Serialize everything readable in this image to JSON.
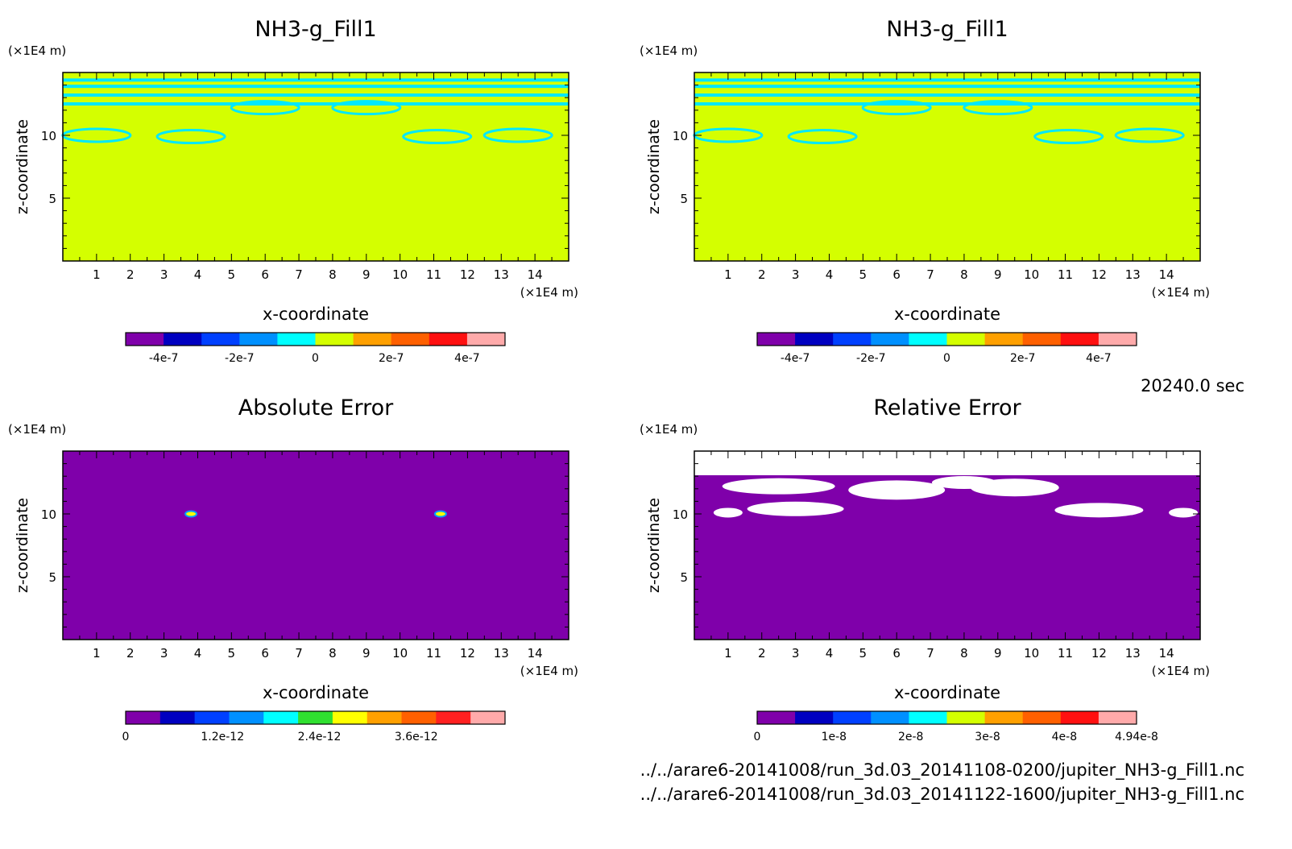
{
  "time_label": "20240.0 sec",
  "file_paths": [
    "../../arare6-20141008/run_3d.03_20141108-0200/jupiter_NH3-g_Fill1.nc",
    "../../arare6-20141008/run_3d.03_20141122-1600/jupiter_NH3-g_Fill1.nc"
  ],
  "chart_data": [
    {
      "type": "heatmap",
      "title": "NH3-g_Fill1",
      "xlabel": "x-coordinate",
      "ylabel": "z-coordinate",
      "x_unit": "(×1E4 m)",
      "y_unit": "(×1E4 m)",
      "xlim": [
        0,
        15
      ],
      "ylim": [
        0,
        15
      ],
      "x_ticks": [
        1,
        2,
        3,
        4,
        5,
        6,
        7,
        8,
        9,
        10,
        11,
        12,
        13,
        14
      ],
      "y_ticks": [
        5,
        10
      ],
      "dominant_value": 0,
      "colorbar": {
        "range": [
          -5e-07,
          5e-07
        ],
        "colors": [
          "#7f00aa",
          "#0000c0",
          "#0040ff",
          "#0090ff",
          "#00ffff",
          "#d4ff00",
          "#ffa000",
          "#ff6000",
          "#ff1010",
          "#ffaaaa"
        ],
        "tick_labels": [
          "-4e-7",
          "-2e-7",
          "0",
          "2e-7",
          "4e-7"
        ],
        "tick_values": [
          -4e-07,
          -2e-07,
          0,
          2e-07,
          4e-07
        ]
      }
    },
    {
      "type": "heatmap",
      "title": "NH3-g_Fill1",
      "xlabel": "x-coordinate",
      "ylabel": "z-coordinate",
      "x_unit": "(×1E4 m)",
      "y_unit": "(×1E4 m)",
      "xlim": [
        0,
        15
      ],
      "ylim": [
        0,
        15
      ],
      "x_ticks": [
        1,
        2,
        3,
        4,
        5,
        6,
        7,
        8,
        9,
        10,
        11,
        12,
        13,
        14
      ],
      "y_ticks": [
        5,
        10
      ],
      "dominant_value": 0,
      "colorbar": {
        "range": [
          -5e-07,
          5e-07
        ],
        "colors": [
          "#7f00aa",
          "#0000c0",
          "#0040ff",
          "#0090ff",
          "#00ffff",
          "#d4ff00",
          "#ffa000",
          "#ff6000",
          "#ff1010",
          "#ffaaaa"
        ],
        "tick_labels": [
          "-4e-7",
          "-2e-7",
          "0",
          "2e-7",
          "4e-7"
        ],
        "tick_values": [
          -4e-07,
          -2e-07,
          0,
          2e-07,
          4e-07
        ]
      }
    },
    {
      "type": "heatmap",
      "title": "Absolute Error",
      "xlabel": "x-coordinate",
      "ylabel": "z-coordinate",
      "x_unit": "(×1E4 m)",
      "y_unit": "(×1E4 m)",
      "xlim": [
        0,
        15
      ],
      "ylim": [
        0,
        15
      ],
      "x_ticks": [
        1,
        2,
        3,
        4,
        5,
        6,
        7,
        8,
        9,
        10,
        11,
        12,
        13,
        14
      ],
      "y_ticks": [
        5,
        10
      ],
      "dominant_value": 0,
      "colorbar": {
        "range": [
          0,
          4.7e-12
        ],
        "colors": [
          "#7f00aa",
          "#0000c0",
          "#0040ff",
          "#0090ff",
          "#00ffff",
          "#30e030",
          "#ffff00",
          "#ffa000",
          "#ff6000",
          "#ff2020",
          "#ffaaaa"
        ],
        "tick_labels": [
          "0",
          "1.2e-12",
          "2.4e-12",
          "3.6e-12"
        ],
        "tick_values": [
          0,
          1.2e-12,
          2.4e-12,
          3.6e-12
        ]
      }
    },
    {
      "type": "heatmap",
      "title": "Relative Error",
      "xlabel": "x-coordinate",
      "ylabel": "z-coordinate",
      "x_unit": "(×1E4 m)",
      "y_unit": "(×1E4 m)",
      "xlim": [
        0,
        15
      ],
      "ylim": [
        0,
        15
      ],
      "x_ticks": [
        1,
        2,
        3,
        4,
        5,
        6,
        7,
        8,
        9,
        10,
        11,
        12,
        13,
        14
      ],
      "y_ticks": [
        5,
        10
      ],
      "dominant_value": 0,
      "colorbar": {
        "range": [
          0,
          4.94e-08
        ],
        "colors": [
          "#7f00aa",
          "#0000c0",
          "#0040ff",
          "#0090ff",
          "#00ffff",
          "#d4ff00",
          "#ffa000",
          "#ff6000",
          "#ff1010",
          "#ffaaaa"
        ],
        "tick_labels": [
          "0",
          "1e-8",
          "2e-8",
          "3e-8",
          "4e-8",
          "4.94e-8"
        ],
        "tick_values": [
          0,
          1e-08,
          2e-08,
          3e-08,
          4e-08,
          4.94e-08
        ]
      }
    }
  ]
}
